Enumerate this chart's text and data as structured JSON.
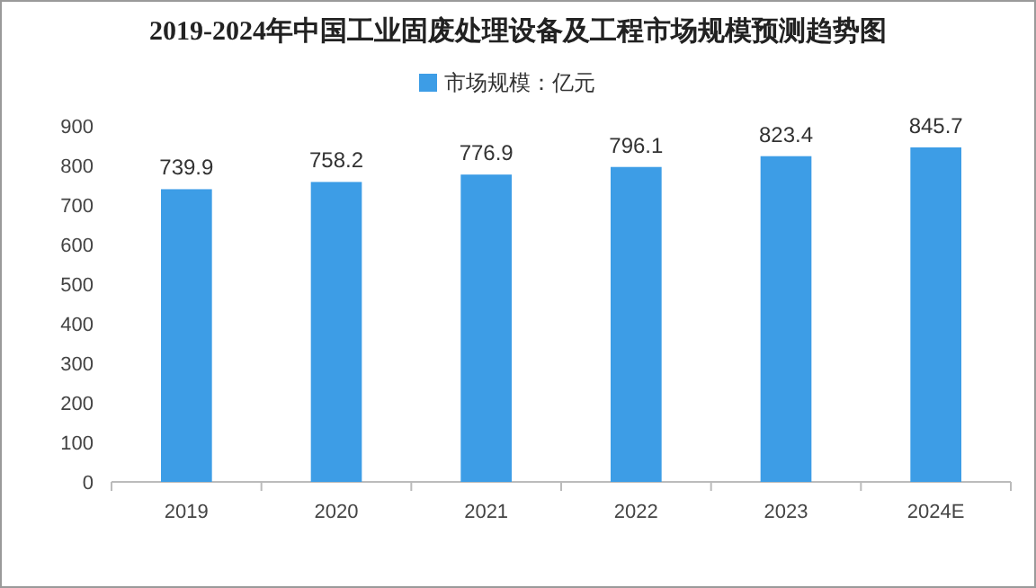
{
  "chart_data": {
    "type": "bar",
    "title": "2019-2024年中国工业固废处理设备及工程市场规模预测趋势图",
    "categories": [
      "2019",
      "2020",
      "2021",
      "2022",
      "2023",
      "2024E"
    ],
    "series": [
      {
        "name": "市场规模：亿元",
        "color": "#3d9de6",
        "values": [
          739.9,
          758.2,
          776.9,
          796.1,
          823.4,
          845.7
        ]
      }
    ],
    "ylim": [
      0,
      900
    ],
    "yticks": [
      0,
      100,
      200,
      300,
      400,
      500,
      600,
      700,
      800,
      900
    ],
    "data_labels": true,
    "legend": "top"
  }
}
